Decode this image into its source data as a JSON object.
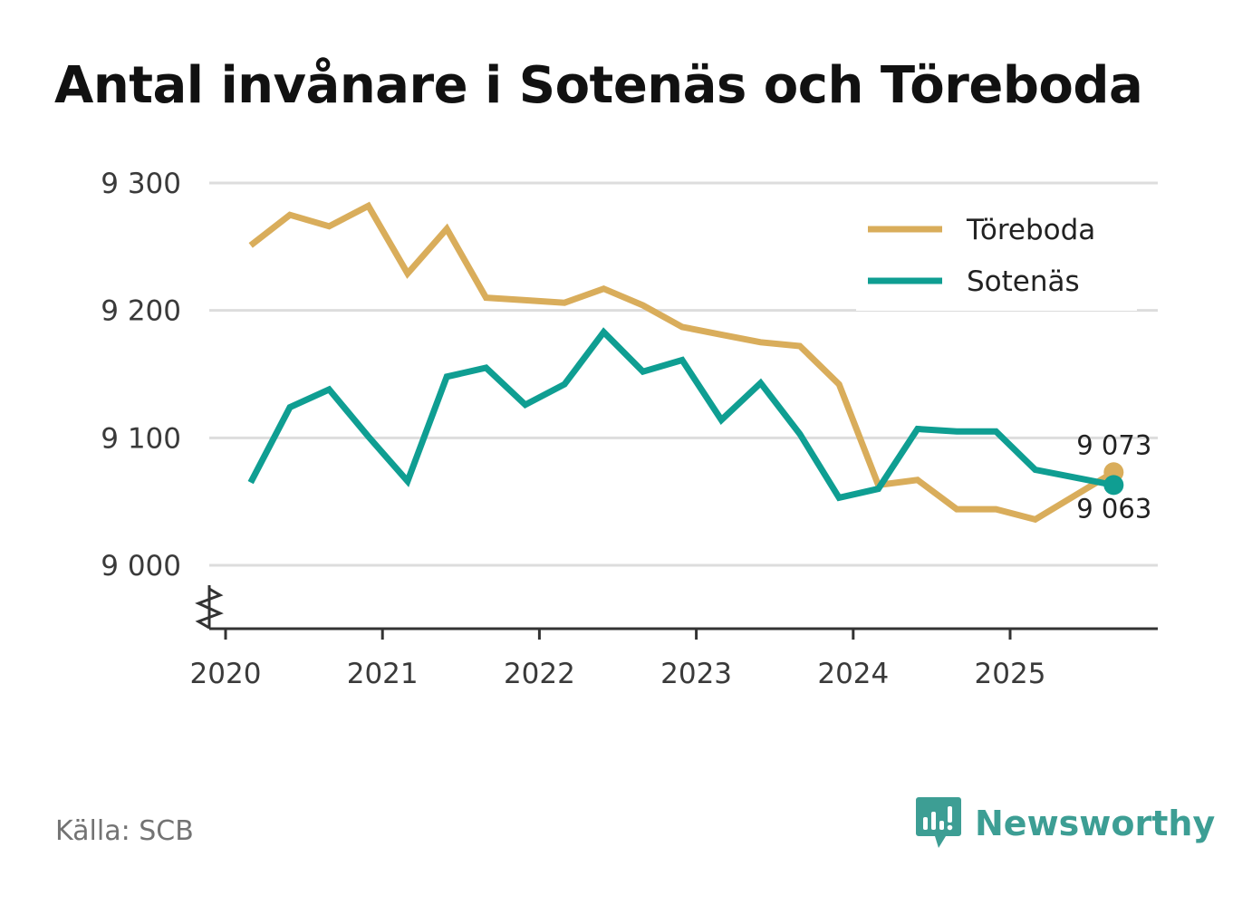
{
  "chart_data": {
    "type": "line",
    "title": "Antal invånare i Sotenäs och Töreboda",
    "xlabel": "",
    "ylabel": "",
    "ylim": [
      8950,
      9300
    ],
    "yticks": [
      9000,
      9100,
      9200,
      9300
    ],
    "ytick_labels": [
      "9 000",
      "9 100",
      "9 200",
      "9 300"
    ],
    "xlim": [
      2019.9,
      2025.95
    ],
    "xticks": [
      2020,
      2021,
      2022,
      2023,
      2024,
      2025
    ],
    "xtick_labels": [
      "2020",
      "2021",
      "2022",
      "2023",
      "2024",
      "2025"
    ],
    "grid": true,
    "axis_break": true,
    "legend_position": "top-right",
    "x": [
      2020.16,
      2020.41,
      2020.66,
      2020.91,
      2021.16,
      2021.41,
      2021.66,
      2021.91,
      2022.16,
      2022.41,
      2022.66,
      2022.91,
      2023.16,
      2023.41,
      2023.66,
      2023.91,
      2024.16,
      2024.41,
      2024.66,
      2024.91,
      2025.16,
      2025.66
    ],
    "series": [
      {
        "name": "Töreboda",
        "color": "#d9ad5b",
        "values": [
          9251,
          9275,
          9266,
          9282,
          9229,
          9264,
          9210,
          9208,
          9206,
          9217,
          9204,
          9187,
          9181,
          9175,
          9172,
          9142,
          9063,
          9067,
          9044,
          9044,
          9036,
          9073
        ],
        "end_label": "9 073"
      },
      {
        "name": "Sotenäs",
        "color": "#0f9e92",
        "values": [
          9065,
          9124,
          9138,
          9101,
          9066,
          9148,
          9155,
          9126,
          9142,
          9183,
          9152,
          9161,
          9114,
          9143,
          9103,
          9053,
          9060,
          9107,
          9105,
          9105,
          9075,
          9063
        ],
        "end_label": "9 063"
      }
    ]
  },
  "footer": {
    "source": "Källa: SCB",
    "brand": "Newsworthy"
  },
  "colors": {
    "grid": "#dddddd",
    "axis": "#333333",
    "brand": "#3d9e94"
  },
  "icons": {
    "brand_logo": "newsworthy-logo-icon",
    "axis_break": "axis-break-icon"
  }
}
